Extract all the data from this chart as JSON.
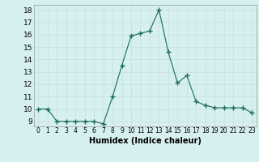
{
  "x": [
    0,
    1,
    2,
    3,
    4,
    5,
    6,
    7,
    8,
    9,
    10,
    11,
    12,
    13,
    14,
    15,
    16,
    17,
    18,
    19,
    20,
    21,
    22,
    23
  ],
  "y": [
    10,
    10,
    9,
    9,
    9,
    9,
    9,
    8.8,
    11,
    13.5,
    15.9,
    16.1,
    16.3,
    18.0,
    14.6,
    12.1,
    12.7,
    10.6,
    10.3,
    10.1,
    10.1,
    10.1,
    10.1,
    9.7
  ],
  "xlabel": "Humidex (Indice chaleur)",
  "xlim": [
    -0.5,
    23.5
  ],
  "ylim": [
    8.6,
    18.4
  ],
  "yticks": [
    9,
    10,
    11,
    12,
    13,
    14,
    15,
    16,
    17,
    18
  ],
  "xtick_labels": [
    "0",
    "1",
    "2",
    "3",
    "4",
    "5",
    "6",
    "7",
    "8",
    "9",
    "10",
    "11",
    "12",
    "13",
    "14",
    "15",
    "16",
    "17",
    "18",
    "19",
    "20",
    "21",
    "22",
    "23"
  ],
  "line_color": "#1a6b5a",
  "marker": "+",
  "bg_color": "#d6f0ef",
  "grid_color": "#c8dede"
}
